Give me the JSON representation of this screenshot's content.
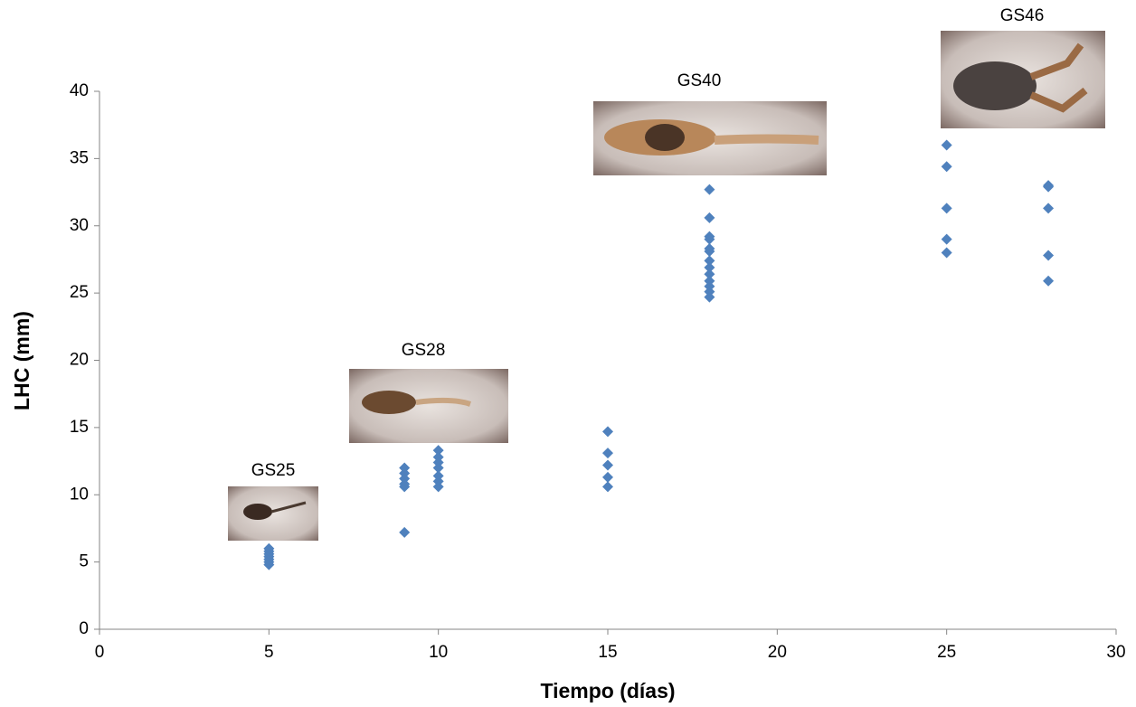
{
  "chart_data": {
    "type": "scatter",
    "x_label": "Tiempo (días)",
    "y_label": "LHC (mm)",
    "x": [
      5,
      5,
      5,
      5,
      5,
      5,
      5,
      9,
      9,
      9,
      9,
      9,
      9,
      10,
      10,
      10,
      10,
      10,
      10,
      10,
      15,
      15,
      15,
      15,
      15,
      18,
      18,
      18,
      18,
      18,
      18,
      18,
      18,
      18,
      18,
      18,
      18,
      18,
      25,
      25,
      25,
      25,
      25,
      28,
      28,
      28,
      28,
      28
    ],
    "values": [
      4.8,
      5.0,
      5.2,
      5.4,
      5.6,
      5.8,
      6.0,
      12.0,
      11.6,
      11.2,
      10.8,
      10.6,
      7.2,
      13.3,
      12.8,
      12.4,
      12.0,
      11.4,
      11.0,
      10.6,
      14.7,
      13.1,
      12.2,
      11.3,
      10.6,
      32.7,
      30.6,
      29.2,
      29.0,
      28.3,
      28.1,
      27.4,
      26.9,
      26.4,
      25.9,
      25.5,
      25.1,
      24.7,
      36.0,
      34.4,
      31.3,
      29.0,
      28.0,
      33.0,
      32.9,
      31.3,
      27.8,
      25.9
    ],
    "color": "#4f81bd",
    "annotations": [
      "GS25",
      "GS28",
      "GS40",
      "GS46"
    ],
    "xlim": [
      0,
      30
    ],
    "xticks": [
      0,
      5,
      10,
      15,
      20,
      25,
      30
    ],
    "ylim": [
      0,
      40
    ],
    "yticks": [
      0,
      5,
      10,
      15,
      20,
      25,
      30,
      35,
      40
    ]
  }
}
